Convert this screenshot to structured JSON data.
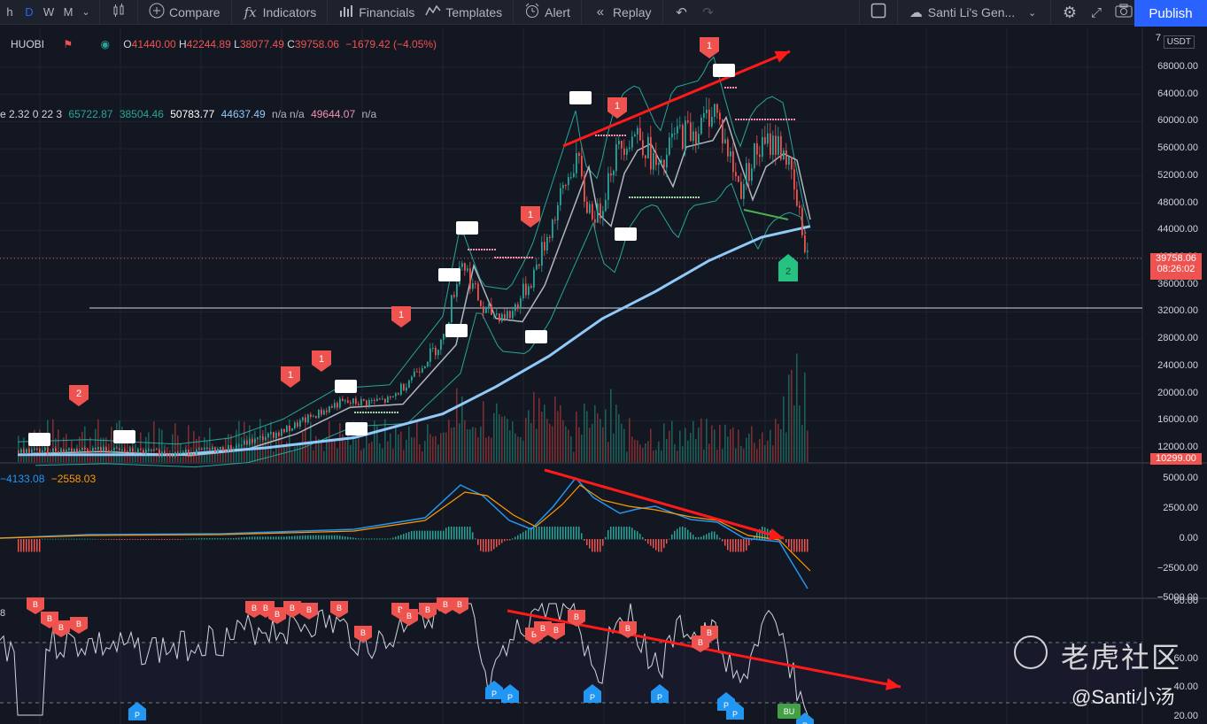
{
  "toolbar": {
    "timeframes": [
      "h",
      "D",
      "W",
      "M"
    ],
    "active_timeframe": "D",
    "compare_label": "Compare",
    "indicators_label": "Indicators",
    "financials_label": "Financials",
    "templates_label": "Templates",
    "alert_label": "Alert",
    "replay_label": "Replay",
    "layout_name": "Santi Li's Gen...",
    "publish_label": "Publish"
  },
  "symbol": {
    "exchange": "HUOBI",
    "open_label": "O",
    "open": "41440.00",
    "high_label": "H",
    "high": "42244.89",
    "low_label": "L",
    "low": "38077.49",
    "close_label": "C",
    "close": "39758.06",
    "change": "−1679.42 (−4.05%)"
  },
  "indicator_legend": {
    "prefix": "e 2.32 0 22 3",
    "v1": "65722.87",
    "v2": "38504.46",
    "v3": "50783.77",
    "v4": "44637.49",
    "v5": "n/a n/a",
    "v6": "49644.07",
    "v7": "n/a"
  },
  "macd_legend": {
    "v1": "−4133.08",
    "v2": "−2558.03"
  },
  "price_axis": {
    "currency": "USDT",
    "labels": [
      "68000.00",
      "64000.00",
      "60000.00",
      "56000.00",
      "52000.00",
      "48000.00",
      "44000.00",
      "40000.00",
      "36000.00",
      "32000.00",
      "28000.00",
      "24000.00",
      "20000.00",
      "16000.00",
      "12000.00"
    ],
    "top_partial": "7",
    "current_price": "39758.06",
    "countdown": "08:26:02",
    "low_price": "10299.00"
  },
  "macd_axis": {
    "labels": [
      "5000.00",
      "2500.00",
      "0.00",
      "−2500.00",
      "−5000.00"
    ]
  },
  "osc_axis": {
    "labels": [
      "80.00",
      "60.00",
      "40.00",
      "20.00"
    ],
    "left_partial": "8"
  },
  "markers": {
    "sell_label": "1",
    "sell2_label": "2",
    "buy2_label": "2",
    "b_label": "B",
    "p_label": "P",
    "bu_label": "BU"
  },
  "watermark": {
    "brand": "老虎社区",
    "user": "@Santi小汤"
  },
  "colors": {
    "background": "#131722",
    "up": "#26a69a",
    "down": "#ef5350",
    "accent": "#2962ff",
    "ma_blue": "#90caf9",
    "arrow_red": "#ff1a1a"
  },
  "icons": [
    "candles-icon",
    "compare-plus-icon",
    "indicators-fx-icon",
    "financials-icon",
    "templates-icon",
    "alert-clock-icon",
    "replay-icon",
    "undo-icon",
    "redo-icon",
    "layout-square-icon",
    "cloud-icon",
    "chevron-down-icon",
    "settings-gear-icon",
    "fullscreen-icon",
    "camera-icon"
  ]
}
